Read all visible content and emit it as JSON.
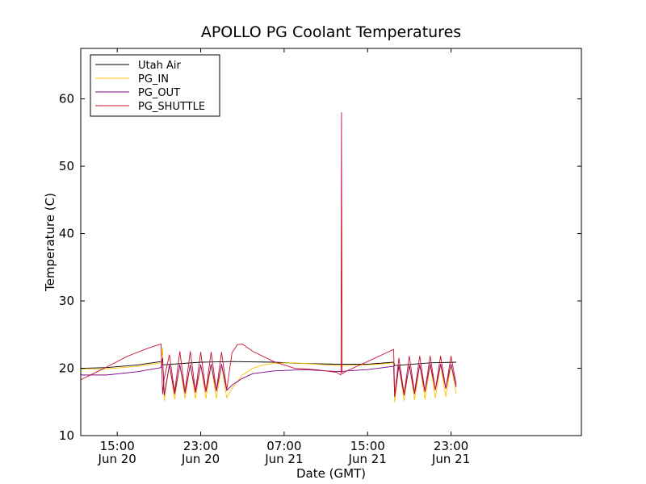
{
  "chart_data": {
    "type": "line",
    "title": "APOLLO PG Coolant Temperatures",
    "xlabel": "Date (GMT)",
    "ylabel": "Temperature (C)",
    "xlim": [
      11.5,
      59.5
    ],
    "ylim": [
      10,
      67.5
    ],
    "yticks": [
      10,
      20,
      30,
      40,
      50,
      60
    ],
    "xticks": [
      {
        "value": 15,
        "time": "15:00",
        "date": "Jun 20"
      },
      {
        "value": 23,
        "time": "23:00",
        "date": "Jun 20"
      },
      {
        "value": 31,
        "time": "07:00",
        "date": "Jun 21"
      },
      {
        "value": 39,
        "time": "15:00",
        "date": "Jun 21"
      },
      {
        "value": 47,
        "time": "23:00",
        "date": "Jun 21"
      }
    ],
    "x_units": "hours since 2010-06-20 00:00 GMT (approx)",
    "legend_position": "upper-left",
    "series": [
      {
        "name": "Utah Air",
        "color": "#000000",
        "x": [
          11.5,
          14,
          17,
          19.2,
          19.3,
          23,
          26,
          30,
          33,
          36,
          39,
          41.5,
          41.6,
          45,
          47.5
        ],
        "y": [
          20.0,
          20.1,
          20.5,
          21.0,
          20.5,
          20.9,
          21.0,
          20.9,
          20.7,
          20.6,
          20.6,
          20.9,
          20.4,
          20.8,
          20.9
        ]
      },
      {
        "name": "PG_IN",
        "color": "#ffc000",
        "x": [
          11.5,
          14,
          17,
          19.2,
          19.35,
          19.5,
          20,
          20.5,
          21,
          21.5,
          22,
          22.5,
          23,
          23.5,
          24,
          24.5,
          25,
          25.5,
          26,
          27,
          28,
          29,
          30,
          31,
          32,
          33,
          34,
          35,
          36,
          37,
          38,
          39,
          40,
          41.5,
          41.6,
          42,
          42.5,
          43,
          43.5,
          44,
          44.5,
          45,
          45.5,
          46,
          46.5,
          47,
          47.5
        ],
        "y": [
          19.9,
          19.9,
          20.3,
          20.8,
          23.0,
          15.2,
          20.5,
          15.4,
          20.5,
          15.5,
          20.5,
          15.5,
          20.5,
          15.5,
          20.5,
          15.5,
          20.5,
          15.6,
          17.0,
          19.0,
          20.0,
          20.5,
          20.7,
          20.8,
          20.8,
          20.7,
          20.6,
          20.5,
          20.4,
          20.4,
          20.5,
          20.5,
          20.6,
          20.8,
          15.0,
          20.4,
          15.2,
          20.5,
          15.3,
          20.5,
          15.4,
          20.5,
          15.6,
          20.5,
          15.8,
          20.5,
          16.2
        ]
      },
      {
        "name": "PG_OUT",
        "color": "#800080",
        "x": [
          11.5,
          14,
          17,
          19.2,
          19.35,
          19.5,
          20,
          20.5,
          21,
          21.5,
          22,
          22.5,
          23,
          23.5,
          24,
          24.5,
          25,
          25.5,
          26,
          27,
          28,
          30,
          33,
          35,
          36.5,
          37,
          39,
          41.5,
          41.6,
          42,
          42.5,
          43,
          43.5,
          44,
          44.5,
          45,
          45.5,
          46,
          46.5,
          47,
          47.5
        ],
        "y": [
          19.0,
          19.0,
          19.5,
          20.1,
          21.5,
          16.0,
          20.5,
          16.2,
          20.5,
          16.3,
          20.5,
          16.4,
          20.5,
          16.5,
          20.6,
          16.6,
          20.6,
          16.7,
          17.5,
          18.5,
          19.2,
          19.6,
          19.8,
          19.6,
          19.5,
          19.6,
          19.8,
          20.3,
          15.8,
          20.4,
          16.0,
          20.4,
          16.2,
          20.5,
          16.5,
          20.6,
          16.8,
          20.6,
          17.0,
          20.6,
          17.2
        ]
      },
      {
        "name": "PG_SHUTTLE",
        "color": "#c8102e",
        "x": [
          11.5,
          13.5,
          16,
          18,
          19.2,
          19.35,
          19.5,
          20,
          20.5,
          21,
          21.5,
          22,
          22.5,
          23,
          23.5,
          24,
          24.5,
          25,
          25.5,
          26,
          26.5,
          27,
          28,
          30,
          32,
          34,
          36,
          36.45,
          36.5,
          36.55,
          36.6,
          37,
          39,
          41.5,
          41.6,
          42,
          42.5,
          43,
          43.5,
          44,
          44.5,
          45,
          45.5,
          46,
          46.5,
          47,
          47.5
        ],
        "y": [
          18.3,
          19.8,
          21.8,
          23.0,
          23.6,
          16.2,
          18.5,
          22.0,
          16.5,
          22.5,
          16.5,
          22.5,
          16.6,
          22.4,
          16.6,
          22.4,
          16.7,
          22.4,
          16.8,
          22.3,
          23.5,
          23.6,
          22.5,
          21.0,
          20.0,
          19.8,
          19.4,
          19.0,
          58.0,
          19.5,
          19.2,
          19.6,
          21.0,
          22.8,
          16.0,
          21.5,
          16.2,
          21.8,
          16.4,
          21.8,
          16.6,
          21.8,
          16.8,
          21.8,
          17.0,
          21.8,
          17.5
        ]
      }
    ]
  }
}
